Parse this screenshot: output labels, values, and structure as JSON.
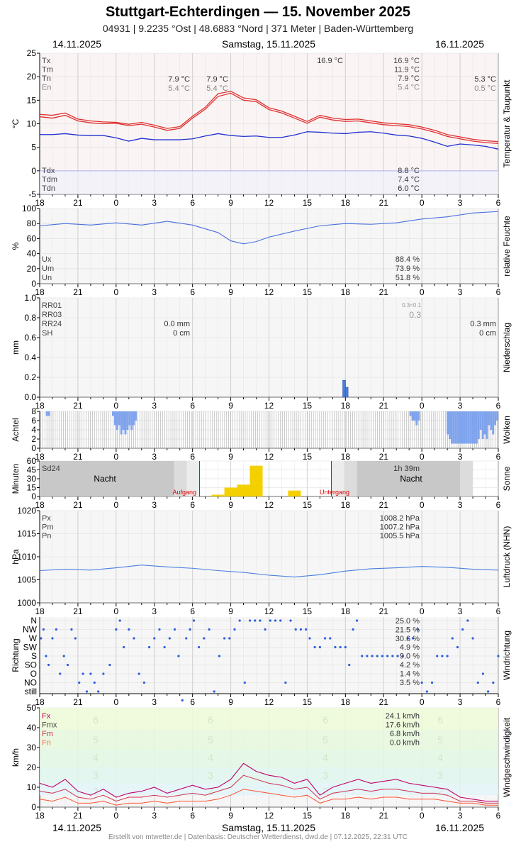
{
  "title": "Stuttgart-Echterdingen  —  15. November 2025",
  "subtitle": "04931  |  9.2235 °Ost  |  48.6883 °Nord  |  371 Meter  |  Baden-Württemberg",
  "header": {
    "left_date": "14.11.2025",
    "center_date": "Samstag, 15.11.2025",
    "right_date": "16.11.2025"
  },
  "credit": "Erstellt von mtwetter.de | Datenbasis: Deutscher Wetterdienst, dwd.de | 07.12.2025, 22:31 UTC",
  "x_ticks": [
    "18",
    "21",
    "0",
    "3",
    "6",
    "9",
    "12",
    "15",
    "18",
    "21",
    "0",
    "3",
    "6"
  ],
  "colors": {
    "tmax": "#e03030",
    "tmin": "#e03030",
    "tmean": "#e02020",
    "dew": "#2030d0",
    "humidity": "#4a6fe0",
    "rain": "#4a7fe0",
    "cloud": "#7fa3ec",
    "sun": "#f5d000",
    "pressure": "#4a7fe0",
    "wind_dir": "#2a5ee0",
    "fx": "#c0006a",
    "fmx": "#d03050",
    "fm": "#ff5030"
  },
  "chart_data": [
    {
      "type": "line",
      "name": "temperature",
      "ylabel": "°C",
      "side_label": "Temperatur & Taupunkt",
      "ylim": [
        -5,
        25
      ],
      "y_ticks": [
        25,
        20,
        15,
        10,
        5,
        0,
        -5
      ],
      "legend_left": [
        "Tx",
        "Tm",
        "Tn",
        "En"
      ],
      "vals_day14": [
        {
          "tn": "7.9 °C",
          "en": "5.4 °C"
        }
      ],
      "annot_mid": {
        "tn": "7.9 °C",
        "en": "5.4 °C"
      },
      "annot_day": {
        "tx": "16.9 °C"
      },
      "annot_right": {
        "tx": "16.9 °C",
        "tm": "11.9 °C",
        "tn": "7.9 °C",
        "en": "5.4 °C"
      },
      "annot_far": {
        "tn": "5.3 °C",
        "en": "0.5 °C"
      },
      "legend_dew": [
        "Tdx",
        "Tdm",
        "Tdn"
      ],
      "dew_values": [
        "8.8 °C",
        "7.4 °C",
        "6.0 °C"
      ],
      "x_hours": [
        18,
        19,
        20,
        21,
        22,
        23,
        24,
        25,
        26,
        27,
        28,
        29,
        30,
        31,
        32,
        33,
        34,
        35,
        36,
        37,
        38,
        39,
        40,
        41,
        42,
        43,
        44,
        45,
        46,
        47,
        48,
        49,
        50,
        51,
        52,
        53,
        54
      ],
      "series_temp": [
        11.5,
        11.2,
        11.8,
        10.6,
        10.2,
        10.0,
        10.1,
        9.6,
        9.9,
        9.3,
        8.6,
        9.0,
        11.2,
        13.1,
        15.8,
        16.5,
        15.0,
        14.7,
        13.0,
        12.3,
        11.2,
        10.1,
        11.4,
        10.8,
        10.5,
        10.6,
        10.2,
        9.8,
        9.6,
        9.4,
        8.9,
        8.2,
        7.3,
        6.8,
        6.3,
        6.0,
        5.8
      ],
      "series_temp2": [
        12.0,
        11.8,
        12.3,
        11.0,
        10.6,
        10.4,
        10.3,
        9.9,
        10.3,
        9.7,
        9.0,
        9.4,
        11.6,
        13.5,
        16.4,
        16.9,
        15.5,
        15.1,
        13.4,
        12.7,
        11.6,
        10.5,
        11.8,
        11.2,
        10.9,
        11.0,
        10.6,
        10.2,
        10.0,
        9.8,
        9.3,
        8.6,
        7.7,
        7.2,
        6.7,
        6.4,
        6.2
      ],
      "series_dew": [
        7.7,
        7.7,
        7.9,
        7.6,
        7.5,
        7.5,
        7.0,
        6.3,
        6.9,
        6.6,
        6.6,
        6.6,
        6.8,
        7.4,
        7.9,
        7.5,
        7.3,
        7.4,
        7.1,
        7.1,
        7.6,
        8.3,
        8.2,
        8.0,
        7.9,
        8.2,
        8.3,
        8.0,
        7.6,
        7.4,
        6.9,
        6.1,
        5.2,
        5.7,
        5.5,
        5.2,
        4.6
      ]
    },
    {
      "type": "line",
      "name": "humidity",
      "ylabel": "%",
      "side_label": "relative Feuchte",
      "ylim": [
        0,
        100
      ],
      "y_ticks": [
        100,
        80,
        60,
        40,
        20,
        0
      ],
      "legend": [
        "Ux",
        "Um",
        "Un"
      ],
      "values_right": [
        "88.4 %",
        "73.9 %",
        "51.8 %"
      ],
      "x_hours": [
        18,
        20,
        22,
        24,
        26,
        28,
        30,
        32,
        33,
        34,
        35,
        36,
        38,
        40,
        42,
        44,
        46,
        48,
        50,
        52,
        54
      ],
      "series": [
        77,
        80,
        78,
        81,
        78,
        83,
        78,
        68,
        57,
        53,
        56,
        62,
        70,
        77,
        80,
        79,
        81,
        86,
        89,
        94,
        96
      ]
    },
    {
      "type": "bar",
      "name": "precipitation",
      "ylabel": "mm",
      "side_label": "Niederschlag",
      "ylim": [
        0,
        1.0
      ],
      "y_ticks": [
        "1.0",
        "0.8",
        "0.6",
        "0.4",
        "0.2",
        "0.0"
      ],
      "legend": [
        "RR01",
        "RR03",
        "RR24",
        "SH"
      ],
      "values_mid": [
        "0.0 mm",
        "0 cm"
      ],
      "values_right": [
        "0.3 mm",
        "0 cm"
      ],
      "annot_small": "0.3<0.1",
      "annot_rr03": "0.3",
      "bars": [
        {
          "hour": 41.9,
          "value": 0.17
        },
        {
          "hour": 42.1,
          "value": 0.1
        }
      ]
    },
    {
      "type": "bar",
      "name": "clouds",
      "ylabel": "Achtel",
      "side_label": "Wolken",
      "ylim": [
        0,
        8
      ],
      "y_ticks": [
        8,
        6,
        4,
        2,
        0
      ],
      "series": [
        8,
        8,
        8,
        7,
        7,
        8,
        8,
        8,
        8,
        8,
        8,
        8,
        8,
        8,
        8,
        8,
        8,
        8,
        8,
        8,
        8,
        8,
        8,
        8,
        8,
        8,
        8,
        8,
        8,
        8,
        8,
        8,
        8,
        8,
        8,
        7,
        5,
        4,
        5,
        3,
        4,
        3,
        4,
        5,
        4,
        5,
        6,
        8,
        8,
        8,
        8,
        8,
        8,
        8,
        8,
        8,
        8,
        8,
        8,
        8,
        8,
        8,
        8,
        8,
        8,
        8,
        8,
        8,
        8,
        8,
        8,
        8,
        8,
        8,
        8,
        8,
        8,
        8,
        8,
        8,
        8,
        8,
        8,
        8,
        8,
        8,
        8,
        8,
        8,
        8,
        8,
        8,
        8,
        8,
        8,
        8,
        8,
        8,
        8,
        8,
        8,
        8,
        8,
        8,
        8,
        8,
        8,
        8,
        8,
        8,
        8,
        8,
        8,
        8,
        8,
        8,
        8,
        8,
        8,
        8,
        8,
        8,
        8,
        8,
        8,
        8,
        8,
        8,
        8,
        8,
        8,
        8,
        8,
        8,
        8,
        8,
        8,
        8,
        8,
        8,
        8,
        8,
        8,
        8,
        8,
        8,
        8,
        8,
        8,
        8,
        8,
        8,
        8,
        8,
        8,
        8,
        8,
        8,
        8,
        8,
        8,
        8,
        8,
        8,
        8,
        8,
        8,
        8,
        8,
        8,
        8,
        8,
        8,
        8,
        8,
        8,
        8,
        8,
        8,
        7,
        6,
        6,
        5,
        6,
        8,
        8,
        8,
        8,
        8,
        8,
        8,
        8,
        8,
        8,
        8,
        8,
        8,
        3,
        2,
        1,
        1,
        1,
        1,
        1,
        1,
        1,
        1,
        1,
        1,
        1,
        1,
        1,
        2,
        4,
        2,
        3,
        2,
        5,
        4,
        3,
        5,
        6
      ]
    },
    {
      "type": "bar",
      "name": "sunshine",
      "ylabel": "Minuten",
      "side_label": "Sonne",
      "ylim": [
        0,
        60
      ],
      "y_ticks": [
        60,
        45,
        30,
        15,
        0
      ],
      "legend": "Sd24",
      "value_right": "1h 39m",
      "night_labels": [
        "Nacht",
        "Nacht"
      ],
      "sunrise_label": "Aufgang",
      "sunset_label": "Untergang",
      "sunrise_hour": 30.55,
      "sunset_hour": 40.9,
      "bars": [
        {
          "hour": 32,
          "value": 3
        },
        {
          "hour": 33,
          "value": 15
        },
        {
          "hour": 34,
          "value": 20
        },
        {
          "hour": 35,
          "value": 52
        },
        {
          "hour": 38,
          "value": 10
        }
      ]
    },
    {
      "type": "line",
      "name": "pressure",
      "ylabel": "hPa",
      "side_label": "Luftdruck (NHN)",
      "ylim": [
        1000,
        1020
      ],
      "y_ticks": [
        1020,
        1015,
        1010,
        1005,
        1000
      ],
      "legend": [
        "Px",
        "Pm",
        "Pn"
      ],
      "values_right": [
        "1008.2 hPa",
        "1007.2 hPa",
        "1005.5 hPa"
      ],
      "x_hours": [
        18,
        20,
        22,
        24,
        26,
        28,
        30,
        32,
        34,
        36,
        38,
        40,
        42,
        44,
        46,
        48,
        50,
        52,
        54
      ],
      "series": [
        1007.0,
        1007.3,
        1007.1,
        1007.6,
        1008.2,
        1007.8,
        1007.5,
        1007.0,
        1006.6,
        1006.0,
        1005.6,
        1006.1,
        1006.9,
        1007.4,
        1007.6,
        1007.9,
        1007.7,
        1007.3,
        1007.1
      ]
    },
    {
      "type": "scatter",
      "name": "wind_direction",
      "ylabel": "Richtung",
      "side_label": "Windrichtung",
      "categories": [
        "N",
        "NW",
        "W",
        "SW",
        "S",
        "SO",
        "O",
        "NO",
        "still"
      ],
      "values_right": [
        "25.0 %",
        "21.5 %",
        "30.6 %",
        "4.9 %",
        "9.0 %",
        "4.2 %",
        "1.4 %",
        "3.5 %"
      ],
      "points": [
        [
          18.1,
          2
        ],
        [
          18.3,
          1
        ],
        [
          18.5,
          4
        ],
        [
          18.7,
          5
        ],
        [
          19,
          2
        ],
        [
          19.3,
          1
        ],
        [
          19.6,
          6
        ],
        [
          19.9,
          4
        ],
        [
          20.2,
          5
        ],
        [
          20.5,
          1
        ],
        [
          20.8,
          2
        ],
        [
          21.1,
          7
        ],
        [
          21.4,
          6
        ],
        [
          21.7,
          8
        ],
        [
          22,
          6
        ],
        [
          22.3,
          7
        ],
        [
          22.6,
          8
        ],
        [
          23,
          6
        ],
        [
          23.5,
          5
        ],
        [
          24,
          1
        ],
        [
          24.3,
          0
        ],
        [
          24.6,
          3
        ],
        [
          25,
          1
        ],
        [
          25.4,
          2
        ],
        [
          25.8,
          6
        ],
        [
          26.2,
          7
        ],
        [
          26.6,
          3
        ],
        [
          27,
          2
        ],
        [
          27.4,
          1
        ],
        [
          27.8,
          3
        ],
        [
          28.2,
          2
        ],
        [
          28.6,
          1
        ],
        [
          28.9,
          4
        ],
        [
          29.2,
          9
        ],
        [
          29.5,
          2
        ],
        [
          29.8,
          1
        ],
        [
          30.1,
          0
        ],
        [
          30.5,
          3
        ],
        [
          30.9,
          2
        ],
        [
          31.3,
          1
        ],
        [
          31.7,
          8
        ],
        [
          32.1,
          4
        ],
        [
          32.5,
          2
        ],
        [
          32.9,
          2
        ],
        [
          33.3,
          1
        ],
        [
          33.7,
          0
        ],
        [
          34.1,
          7
        ],
        [
          34.5,
          0
        ],
        [
          34.9,
          0
        ],
        [
          35.3,
          0
        ],
        [
          35.7,
          1
        ],
        [
          36.1,
          0
        ],
        [
          36.5,
          0
        ],
        [
          36.9,
          0
        ],
        [
          37.3,
          7
        ],
        [
          37.7,
          0
        ],
        [
          38.1,
          1
        ],
        [
          38.5,
          1
        ],
        [
          38.9,
          1
        ],
        [
          39.2,
          2
        ],
        [
          39.6,
          3
        ],
        [
          40,
          3
        ],
        [
          40.4,
          2
        ],
        [
          40.8,
          2
        ],
        [
          41.2,
          3
        ],
        [
          41.6,
          3
        ],
        [
          42,
          3
        ],
        [
          42.3,
          5
        ],
        [
          42.6,
          1
        ],
        [
          42.9,
          0
        ],
        [
          43.3,
          4
        ],
        [
          43.7,
          4
        ],
        [
          44.1,
          4
        ],
        [
          44.5,
          4
        ],
        [
          44.9,
          4
        ],
        [
          45.3,
          4
        ],
        [
          45.7,
          4
        ],
        [
          46.1,
          4
        ],
        [
          46.5,
          4
        ],
        [
          46.9,
          2
        ],
        [
          47.3,
          2
        ],
        [
          47.7,
          1
        ],
        [
          48,
          7
        ],
        [
          48.4,
          8
        ],
        [
          48.8,
          7
        ],
        [
          49.2,
          4
        ],
        [
          49.6,
          4
        ],
        [
          50,
          4
        ],
        [
          50.4,
          2
        ],
        [
          50.8,
          3
        ],
        [
          51.2,
          1
        ],
        [
          51.6,
          0
        ],
        [
          52,
          2
        ],
        [
          52.4,
          7
        ],
        [
          52.8,
          6
        ],
        [
          53.2,
          8
        ],
        [
          53.6,
          7
        ],
        [
          54,
          4
        ]
      ]
    },
    {
      "type": "line",
      "name": "wind_speed",
      "ylabel": "km/h",
      "side_label": "Windgeschwindigkeit",
      "ylim": [
        0,
        50
      ],
      "y_ticks": [
        50,
        40,
        30,
        20,
        10,
        0
      ],
      "legend": [
        "Fx",
        "Fmx",
        "Fm",
        "Fn"
      ],
      "values_right": [
        "24.1 km/h",
        "17.6 km/h",
        "6.8 km/h",
        "0.0 km/h"
      ],
      "beaufort_labels": [
        "6",
        "5",
        "4",
        "3",
        "2"
      ],
      "x_hours": [
        18,
        19,
        20,
        21,
        22,
        23,
        24,
        25,
        26,
        27,
        28,
        29,
        30,
        31,
        32,
        33,
        34,
        35,
        36,
        37,
        38,
        39,
        40,
        41,
        42,
        43,
        44,
        45,
        46,
        47,
        48,
        49,
        50,
        51,
        52,
        53,
        54
      ],
      "fx": [
        12,
        10,
        14,
        8,
        6,
        9,
        5,
        7,
        8,
        10,
        7,
        9,
        11,
        9,
        10,
        14,
        22,
        18,
        16,
        15,
        12,
        14,
        6,
        10,
        12,
        14,
        12,
        13,
        14,
        12,
        11,
        10,
        9,
        5,
        4,
        3,
        3
      ],
      "fmx": [
        8,
        7,
        9,
        5,
        4,
        6,
        3,
        5,
        5,
        6,
        5,
        6,
        7,
        6,
        8,
        10,
        16,
        14,
        12,
        11,
        9,
        10,
        4,
        7,
        8,
        9,
        8,
        9,
        9,
        8,
        7,
        7,
        6,
        3,
        3,
        2,
        2
      ],
      "fm": [
        4,
        3,
        5,
        2,
        2,
        3,
        1,
        2,
        2,
        3,
        2,
        3,
        3,
        3,
        4,
        6,
        9,
        8,
        7,
        6,
        5,
        6,
        2,
        4,
        4,
        5,
        4,
        5,
        5,
        4,
        4,
        4,
        3,
        2,
        2,
        1,
        1
      ]
    }
  ]
}
